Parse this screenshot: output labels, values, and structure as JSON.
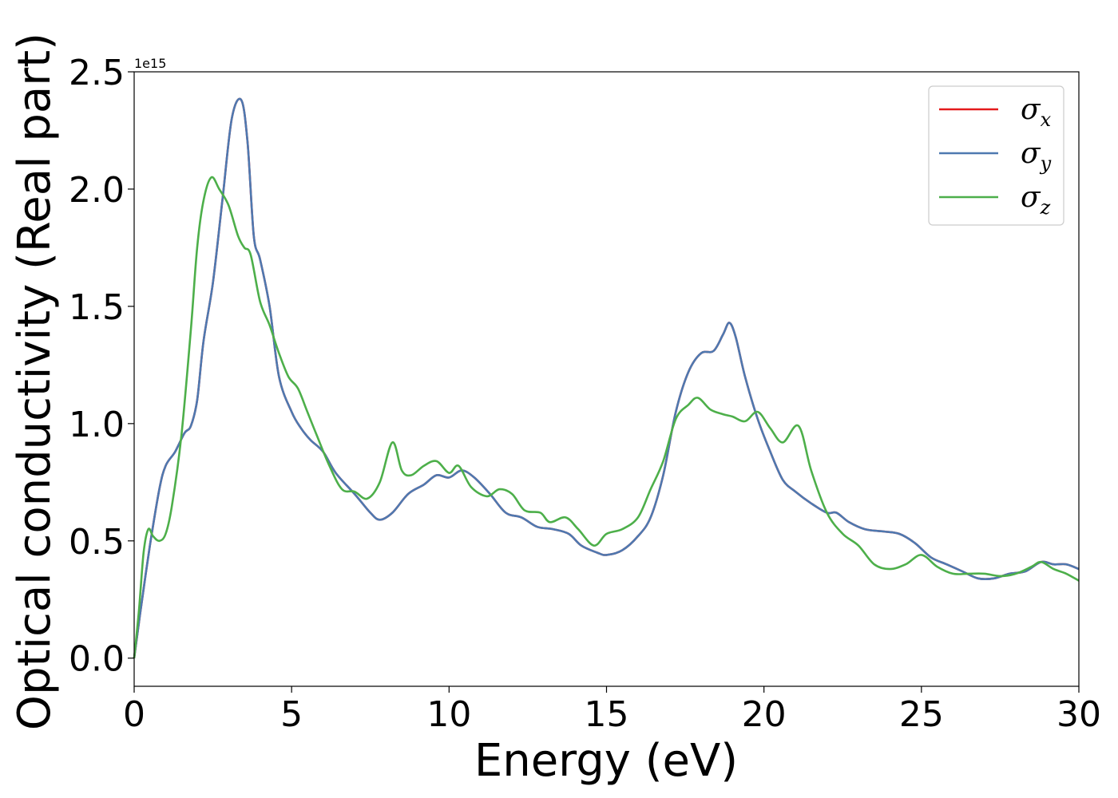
{
  "chart_data": {
    "type": "line",
    "title": "",
    "xlabel": "Energy (eV)",
    "ylabel": "Optical conductivity (Real part)",
    "y_offset_label": "1e15",
    "xlim": [
      0,
      30
    ],
    "ylim": [
      -0.12,
      2.5
    ],
    "x_ticks": [
      0,
      5,
      10,
      15,
      20,
      25,
      30
    ],
    "x_tick_labels": [
      "0",
      "5",
      "10",
      "15",
      "20",
      "25",
      "30"
    ],
    "y_ticks": [
      0.0,
      0.5,
      1.0,
      1.5,
      2.0,
      2.5
    ],
    "y_tick_labels": [
      "0.0",
      "0.5",
      "1.0",
      "1.5",
      "2.0",
      "2.5"
    ],
    "grid": false,
    "legend_position": "top-right",
    "series": [
      {
        "name": "σx",
        "legend_base": "σ",
        "legend_sub": "x",
        "color": "#e41a1c",
        "points": [
          [
            0,
            0
          ],
          [
            0.2,
            0.2
          ],
          [
            0.5,
            0.48
          ],
          [
            0.8,
            0.72
          ],
          [
            1.0,
            0.82
          ],
          [
            1.3,
            0.88
          ],
          [
            1.6,
            0.96
          ],
          [
            1.8,
            0.99
          ],
          [
            2.0,
            1.1
          ],
          [
            2.2,
            1.35
          ],
          [
            2.5,
            1.6
          ],
          [
            2.8,
            1.95
          ],
          [
            3.1,
            2.3
          ],
          [
            3.4,
            2.38
          ],
          [
            3.6,
            2.2
          ],
          [
            3.8,
            1.8
          ],
          [
            4.0,
            1.7
          ],
          [
            4.3,
            1.5
          ],
          [
            4.6,
            1.2
          ],
          [
            5.0,
            1.05
          ],
          [
            5.3,
            0.98
          ],
          [
            5.6,
            0.93
          ],
          [
            6.0,
            0.88
          ],
          [
            6.4,
            0.79
          ],
          [
            7.0,
            0.7
          ],
          [
            7.5,
            0.62
          ],
          [
            7.8,
            0.59
          ],
          [
            8.2,
            0.62
          ],
          [
            8.7,
            0.7
          ],
          [
            9.2,
            0.74
          ],
          [
            9.6,
            0.78
          ],
          [
            10.0,
            0.77
          ],
          [
            10.4,
            0.8
          ],
          [
            10.8,
            0.77
          ],
          [
            11.3,
            0.7
          ],
          [
            11.8,
            0.62
          ],
          [
            12.3,
            0.6
          ],
          [
            12.8,
            0.56
          ],
          [
            13.3,
            0.55
          ],
          [
            13.8,
            0.53
          ],
          [
            14.2,
            0.48
          ],
          [
            14.7,
            0.45
          ],
          [
            15.0,
            0.44
          ],
          [
            15.5,
            0.46
          ],
          [
            16.0,
            0.52
          ],
          [
            16.4,
            0.6
          ],
          [
            16.8,
            0.78
          ],
          [
            17.2,
            1.05
          ],
          [
            17.6,
            1.22
          ],
          [
            18.0,
            1.3
          ],
          [
            18.4,
            1.31
          ],
          [
            18.7,
            1.38
          ],
          [
            18.9,
            1.43
          ],
          [
            19.1,
            1.37
          ],
          [
            19.4,
            1.2
          ],
          [
            19.8,
            1.02
          ],
          [
            20.2,
            0.88
          ],
          [
            20.6,
            0.76
          ],
          [
            21.0,
            0.71
          ],
          [
            21.5,
            0.66
          ],
          [
            22.0,
            0.62
          ],
          [
            22.3,
            0.62
          ],
          [
            22.7,
            0.58
          ],
          [
            23.2,
            0.55
          ],
          [
            23.8,
            0.54
          ],
          [
            24.3,
            0.53
          ],
          [
            24.8,
            0.49
          ],
          [
            25.3,
            0.43
          ],
          [
            25.8,
            0.4
          ],
          [
            26.3,
            0.37
          ],
          [
            26.8,
            0.34
          ],
          [
            27.3,
            0.34
          ],
          [
            27.8,
            0.36
          ],
          [
            28.3,
            0.37
          ],
          [
            28.8,
            0.41
          ],
          [
            29.2,
            0.4
          ],
          [
            29.6,
            0.4
          ],
          [
            30.0,
            0.38
          ]
        ]
      },
      {
        "name": "σy",
        "legend_base": "σ",
        "legend_sub": "y",
        "color": "#4e79b0",
        "points": [
          [
            0,
            0
          ],
          [
            0.2,
            0.2
          ],
          [
            0.5,
            0.48
          ],
          [
            0.8,
            0.72
          ],
          [
            1.0,
            0.82
          ],
          [
            1.3,
            0.88
          ],
          [
            1.6,
            0.96
          ],
          [
            1.8,
            0.99
          ],
          [
            2.0,
            1.1
          ],
          [
            2.2,
            1.35
          ],
          [
            2.5,
            1.6
          ],
          [
            2.8,
            1.95
          ],
          [
            3.1,
            2.3
          ],
          [
            3.4,
            2.38
          ],
          [
            3.6,
            2.2
          ],
          [
            3.8,
            1.8
          ],
          [
            4.0,
            1.7
          ],
          [
            4.3,
            1.5
          ],
          [
            4.6,
            1.2
          ],
          [
            5.0,
            1.05
          ],
          [
            5.3,
            0.98
          ],
          [
            5.6,
            0.93
          ],
          [
            6.0,
            0.88
          ],
          [
            6.4,
            0.79
          ],
          [
            7.0,
            0.7
          ],
          [
            7.5,
            0.62
          ],
          [
            7.8,
            0.59
          ],
          [
            8.2,
            0.62
          ],
          [
            8.7,
            0.7
          ],
          [
            9.2,
            0.74
          ],
          [
            9.6,
            0.78
          ],
          [
            10.0,
            0.77
          ],
          [
            10.4,
            0.8
          ],
          [
            10.8,
            0.77
          ],
          [
            11.3,
            0.7
          ],
          [
            11.8,
            0.62
          ],
          [
            12.3,
            0.6
          ],
          [
            12.8,
            0.56
          ],
          [
            13.3,
            0.55
          ],
          [
            13.8,
            0.53
          ],
          [
            14.2,
            0.48
          ],
          [
            14.7,
            0.45
          ],
          [
            15.0,
            0.44
          ],
          [
            15.5,
            0.46
          ],
          [
            16.0,
            0.52
          ],
          [
            16.4,
            0.6
          ],
          [
            16.8,
            0.78
          ],
          [
            17.2,
            1.05
          ],
          [
            17.6,
            1.22
          ],
          [
            18.0,
            1.3
          ],
          [
            18.4,
            1.31
          ],
          [
            18.7,
            1.38
          ],
          [
            18.9,
            1.43
          ],
          [
            19.1,
            1.37
          ],
          [
            19.4,
            1.2
          ],
          [
            19.8,
            1.02
          ],
          [
            20.2,
            0.88
          ],
          [
            20.6,
            0.76
          ],
          [
            21.0,
            0.71
          ],
          [
            21.5,
            0.66
          ],
          [
            22.0,
            0.62
          ],
          [
            22.3,
            0.62
          ],
          [
            22.7,
            0.58
          ],
          [
            23.2,
            0.55
          ],
          [
            23.8,
            0.54
          ],
          [
            24.3,
            0.53
          ],
          [
            24.8,
            0.49
          ],
          [
            25.3,
            0.43
          ],
          [
            25.8,
            0.4
          ],
          [
            26.3,
            0.37
          ],
          [
            26.8,
            0.34
          ],
          [
            27.3,
            0.34
          ],
          [
            27.8,
            0.36
          ],
          [
            28.3,
            0.37
          ],
          [
            28.8,
            0.41
          ],
          [
            29.2,
            0.4
          ],
          [
            29.6,
            0.4
          ],
          [
            30.0,
            0.38
          ]
        ]
      },
      {
        "name": "σz",
        "legend_base": "σ",
        "legend_sub": "z",
        "color": "#4daf4a",
        "points": [
          [
            0,
            0
          ],
          [
            0.15,
            0.2
          ],
          [
            0.3,
            0.45
          ],
          [
            0.45,
            0.55
          ],
          [
            0.6,
            0.52
          ],
          [
            0.8,
            0.5
          ],
          [
            1.0,
            0.53
          ],
          [
            1.2,
            0.65
          ],
          [
            1.5,
            0.95
          ],
          [
            1.8,
            1.4
          ],
          [
            2.0,
            1.75
          ],
          [
            2.2,
            1.95
          ],
          [
            2.45,
            2.05
          ],
          [
            2.7,
            2.0
          ],
          [
            3.0,
            1.93
          ],
          [
            3.3,
            1.8
          ],
          [
            3.5,
            1.75
          ],
          [
            3.7,
            1.72
          ],
          [
            4.0,
            1.52
          ],
          [
            4.3,
            1.42
          ],
          [
            4.6,
            1.3
          ],
          [
            4.9,
            1.2
          ],
          [
            5.2,
            1.15
          ],
          [
            5.5,
            1.05
          ],
          [
            5.8,
            0.95
          ],
          [
            6.2,
            0.82
          ],
          [
            6.6,
            0.72
          ],
          [
            7.0,
            0.71
          ],
          [
            7.4,
            0.68
          ],
          [
            7.8,
            0.75
          ],
          [
            8.2,
            0.92
          ],
          [
            8.5,
            0.8
          ],
          [
            8.8,
            0.78
          ],
          [
            9.2,
            0.82
          ],
          [
            9.6,
            0.84
          ],
          [
            10.0,
            0.79
          ],
          [
            10.3,
            0.82
          ],
          [
            10.7,
            0.73
          ],
          [
            11.2,
            0.69
          ],
          [
            11.6,
            0.72
          ],
          [
            12.0,
            0.7
          ],
          [
            12.4,
            0.63
          ],
          [
            12.9,
            0.62
          ],
          [
            13.2,
            0.58
          ],
          [
            13.7,
            0.6
          ],
          [
            14.1,
            0.55
          ],
          [
            14.6,
            0.48
          ],
          [
            15.0,
            0.53
          ],
          [
            15.5,
            0.55
          ],
          [
            16.0,
            0.6
          ],
          [
            16.4,
            0.72
          ],
          [
            16.8,
            0.84
          ],
          [
            17.2,
            1.02
          ],
          [
            17.6,
            1.08
          ],
          [
            17.9,
            1.11
          ],
          [
            18.3,
            1.06
          ],
          [
            18.7,
            1.04
          ],
          [
            19.0,
            1.03
          ],
          [
            19.4,
            1.01
          ],
          [
            19.8,
            1.05
          ],
          [
            20.2,
            0.98
          ],
          [
            20.6,
            0.92
          ],
          [
            21.1,
            0.99
          ],
          [
            21.5,
            0.8
          ],
          [
            22.0,
            0.62
          ],
          [
            22.5,
            0.53
          ],
          [
            23.0,
            0.48
          ],
          [
            23.5,
            0.4
          ],
          [
            24.0,
            0.38
          ],
          [
            24.5,
            0.4
          ],
          [
            25.0,
            0.44
          ],
          [
            25.5,
            0.39
          ],
          [
            26.0,
            0.36
          ],
          [
            26.5,
            0.36
          ],
          [
            27.0,
            0.36
          ],
          [
            27.5,
            0.35
          ],
          [
            28.0,
            0.36
          ],
          [
            28.5,
            0.39
          ],
          [
            28.8,
            0.41
          ],
          [
            29.2,
            0.38
          ],
          [
            29.6,
            0.36
          ],
          [
            30.0,
            0.33
          ]
        ]
      }
    ]
  }
}
